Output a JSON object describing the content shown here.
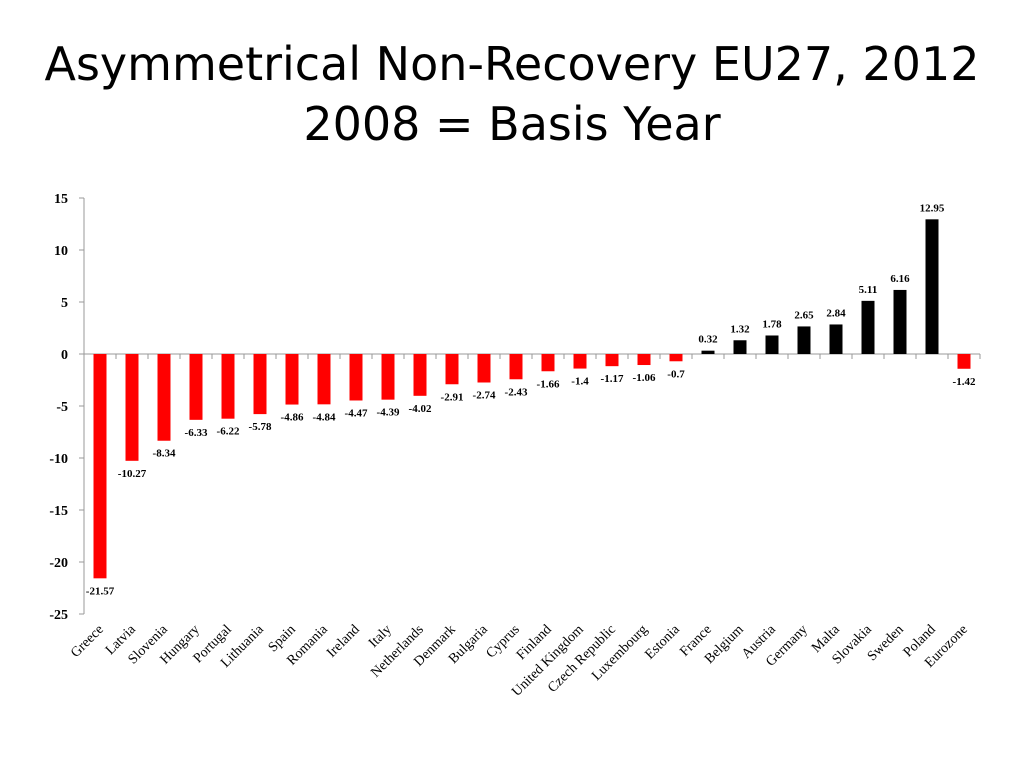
{
  "title": {
    "line1": "Asymmetrical Non-Recovery EU27, 2012",
    "line2": "2008 = Basis Year"
  },
  "colors": {
    "negative": "#ff0000",
    "positive": "#000000",
    "axis": "#999999"
  },
  "chart_data": {
    "type": "bar",
    "categories": [
      "Greece",
      "Latvia",
      "Slovenia",
      "Hungary",
      "Portugal",
      "Lithuania",
      "Spain",
      "Romania",
      "Ireland",
      "Italy",
      "Netherlands",
      "Denmark",
      "Bulgaria",
      "Cyprus",
      "Finland",
      "United Kingdom",
      "Czech Republic",
      "Luxembourg",
      "Estonia",
      "France",
      "Belgium",
      "Austria",
      "Germany",
      "Malta",
      "Slovakia",
      "Sweden",
      "Poland",
      "Eurozone"
    ],
    "values": [
      -21.57,
      -10.27,
      -8.34,
      -6.33,
      -6.22,
      -5.78,
      -4.86,
      -4.84,
      -4.47,
      -4.39,
      -4.02,
      -2.91,
      -2.74,
      -2.43,
      -1.66,
      -1.4,
      -1.17,
      -1.06,
      -0.7,
      0.32,
      1.32,
      1.78,
      2.65,
      2.84,
      5.11,
      6.16,
      12.95,
      -1.42
    ],
    "data_labels": [
      "-21.57",
      "-10.27",
      "-8.34",
      "-6.33",
      "-6.22",
      "-5.78",
      "-4.86",
      "-4.84",
      "-4.47",
      "-4.39",
      "-4.02",
      "-2.91",
      "-2.74",
      "-2.43",
      "-1.66",
      "-1.4",
      "-1.17",
      "-1.06",
      "-0.7",
      "0.32",
      "1.32",
      "1.78",
      "2.65",
      "2.84",
      "5.11",
      "6.16",
      "12.95",
      "-1.42"
    ],
    "ylim": [
      -25,
      15
    ],
    "yticks": [
      15,
      10,
      5,
      0,
      -5,
      -10,
      -15,
      -20,
      -25
    ],
    "xlabel": "",
    "ylabel": "",
    "grid": false,
    "legend": "none"
  }
}
